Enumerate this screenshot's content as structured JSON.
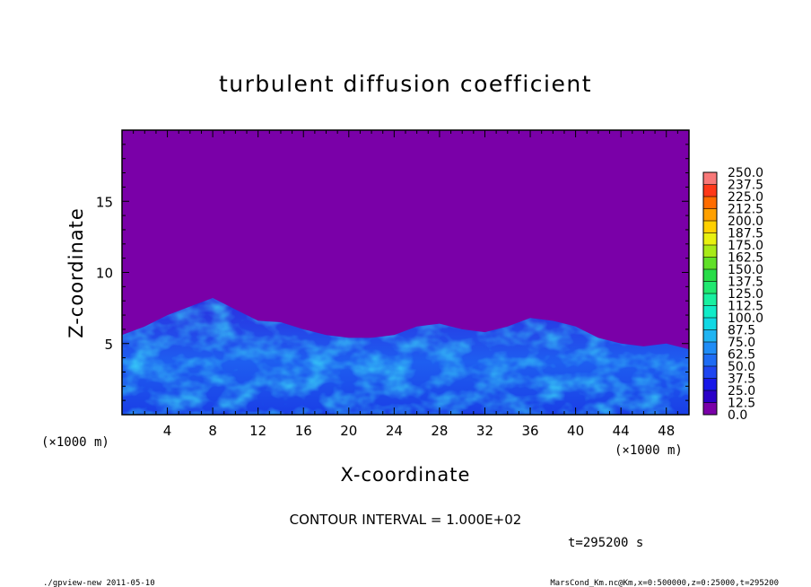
{
  "chart_data": {
    "type": "heatmap",
    "title": "turbulent diffusion coefficient",
    "xlabel": "X-coordinate",
    "ylabel": "Z-coordinate",
    "x_unit": "(×1000 m)",
    "y_unit": "(×1000 m)",
    "xlim": [
      0,
      50
    ],
    "ylim": [
      0,
      20
    ],
    "x_ticks": [
      4,
      8,
      12,
      16,
      20,
      24,
      28,
      32,
      36,
      40,
      44,
      48
    ],
    "y_ticks": [
      5,
      10,
      15
    ],
    "colorbar": {
      "levels": [
        0.0,
        12.5,
        25.0,
        37.5,
        50.0,
        62.5,
        75.0,
        87.5,
        100.0,
        112.5,
        125.0,
        137.5,
        150.0,
        162.5,
        175.0,
        187.5,
        200.0,
        212.5,
        225.0,
        237.5,
        250.0
      ],
      "labels": [
        "0.0",
        "12.5",
        "25.0",
        "37.5",
        "50.0",
        "62.5",
        "75.0",
        "87.5",
        "100.0",
        "112.5",
        "125.0",
        "137.5",
        "150.0",
        "162.5",
        "175.0",
        "187.5",
        "200.0",
        "212.5",
        "225.0",
        "237.5",
        "250.0"
      ],
      "colors": [
        "#7a00a8",
        "#2a00c8",
        "#1818e8",
        "#1f46f0",
        "#1e6cf4",
        "#1f8cf6",
        "#20b4f2",
        "#10d8e4",
        "#10ecc8",
        "#18f0a0",
        "#20e870",
        "#28dc48",
        "#60e028",
        "#a8ea18",
        "#e8f010",
        "#ffd000",
        "#ffa000",
        "#ff6c00",
        "#ff3818",
        "#f87878"
      ]
    },
    "background_value": 0.0,
    "turbulent_layer_top_approx": [
      {
        "x": 0,
        "z": 5.6
      },
      {
        "x": 2,
        "z": 6.2
      },
      {
        "x": 4,
        "z": 7.0
      },
      {
        "x": 6,
        "z": 7.6
      },
      {
        "x": 8,
        "z": 8.2
      },
      {
        "x": 10,
        "z": 7.4
      },
      {
        "x": 12,
        "z": 6.6
      },
      {
        "x": 14,
        "z": 6.5
      },
      {
        "x": 16,
        "z": 6.0
      },
      {
        "x": 18,
        "z": 5.6
      },
      {
        "x": 20,
        "z": 5.4
      },
      {
        "x": 22,
        "z": 5.4
      },
      {
        "x": 24,
        "z": 5.6
      },
      {
        "x": 26,
        "z": 6.2
      },
      {
        "x": 28,
        "z": 6.4
      },
      {
        "x": 30,
        "z": 6.0
      },
      {
        "x": 32,
        "z": 5.8
      },
      {
        "x": 34,
        "z": 6.2
      },
      {
        "x": 36,
        "z": 6.8
      },
      {
        "x": 38,
        "z": 6.6
      },
      {
        "x": 40,
        "z": 6.2
      },
      {
        "x": 42,
        "z": 5.4
      },
      {
        "x": 44,
        "z": 5.0
      },
      {
        "x": 46,
        "z": 4.8
      },
      {
        "x": 48,
        "z": 5.0
      },
      {
        "x": 50,
        "z": 4.6
      }
    ],
    "annotations": {
      "contour_interval": "CONTOUR INTERVAL = 1.000E+02",
      "time": "t=295200 s"
    }
  },
  "footer": {
    "left": "./gpview-new  2011-05-10",
    "right": "MarsCond_Km.nc@Km,x=0:500000,z=0:25000,t=295200"
  }
}
